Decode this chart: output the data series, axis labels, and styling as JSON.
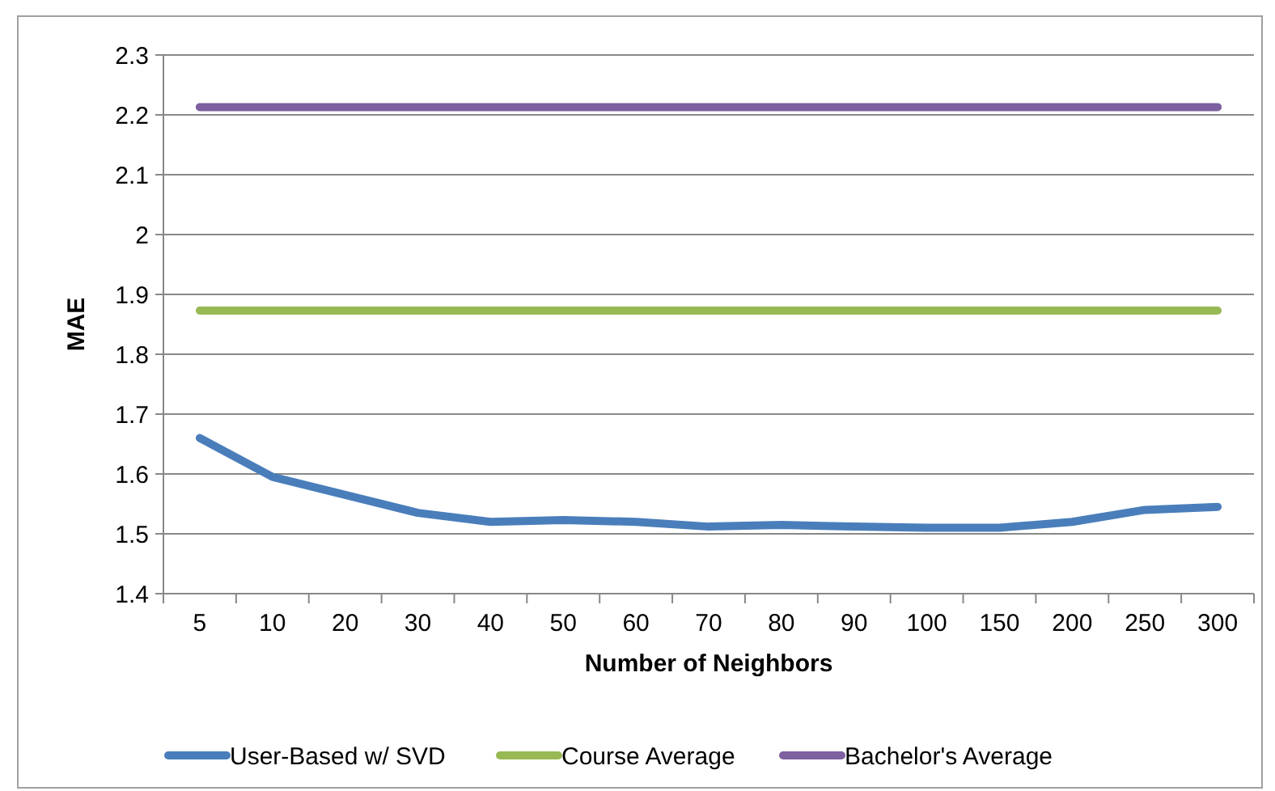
{
  "chart_data": {
    "type": "line",
    "xlabel": "Number of Neighbors",
    "ylabel": "MAE",
    "categories": [
      "5",
      "10",
      "20",
      "30",
      "40",
      "50",
      "60",
      "70",
      "80",
      "90",
      "100",
      "150",
      "200",
      "250",
      "300"
    ],
    "series": [
      {
        "name": "User-Based w/ SVD",
        "color": "#4a7ebb",
        "values": [
          1.66,
          1.595,
          1.565,
          1.535,
          1.52,
          1.523,
          1.52,
          1.512,
          1.515,
          1.512,
          1.51,
          1.51,
          1.52,
          1.54,
          1.545
        ]
      },
      {
        "name": "Course Average",
        "color": "#98b954",
        "values": [
          1.873,
          1.873,
          1.873,
          1.873,
          1.873,
          1.873,
          1.873,
          1.873,
          1.873,
          1.873,
          1.873,
          1.873,
          1.873,
          1.873,
          1.873
        ]
      },
      {
        "name": "Bachelor's Average",
        "color": "#7d60a0",
        "values": [
          2.213,
          2.213,
          2.213,
          2.213,
          2.213,
          2.213,
          2.213,
          2.213,
          2.213,
          2.213,
          2.213,
          2.213,
          2.213,
          2.213,
          2.213
        ]
      }
    ],
    "ylim": [
      1.4,
      2.3
    ],
    "yticks": [
      1.4,
      1.5,
      1.6,
      1.7,
      1.8,
      1.9,
      2,
      2.1,
      2.2,
      2.3
    ],
    "grid": "y",
    "legend": "bottom",
    "marker": "none",
    "line_style": "solid"
  }
}
